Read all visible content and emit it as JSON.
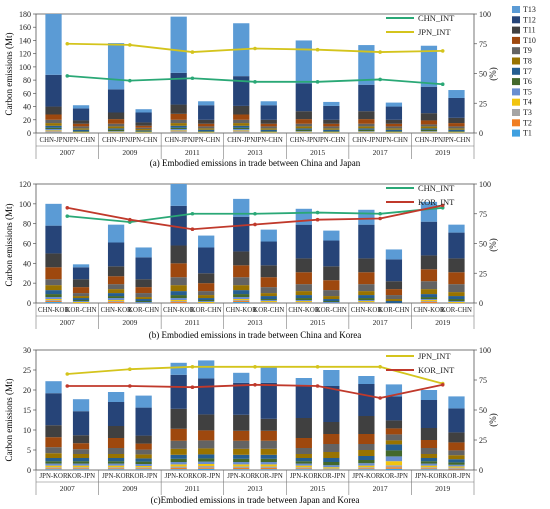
{
  "legend_types": {
    "names": [
      "T13",
      "T12",
      "T11",
      "T10",
      "T9",
      "T8",
      "T7",
      "T6",
      "T5",
      "T4",
      "T3",
      "T2",
      "T1"
    ],
    "colors": [
      "#5b9bd5",
      "#264478",
      "#404040",
      "#9e480e",
      "#636363",
      "#997300",
      "#255e91",
      "#43682b",
      "#698ed0",
      "#f1c40f",
      "#a5a5a5",
      "#f07f24",
      "#3fa0e0"
    ]
  },
  "year_labels": [
    "2007",
    "2009",
    "2011",
    "2013",
    "2015",
    "2017",
    "2019"
  ],
  "chart_data": [
    {
      "type": "bar",
      "stacked": true,
      "caption": "(a) Embodied emissions in trade between China and Japan",
      "ylabel": "Carbon emissions  (Mt)",
      "y2label": "(%)",
      "ylim": [
        0,
        180
      ],
      "yticks": [
        0,
        20,
        40,
        60,
        80,
        100,
        120,
        140,
        160,
        180
      ],
      "y2lim": [
        0,
        100
      ],
      "y2ticks": [
        0,
        25,
        50,
        75,
        100
      ],
      "categories": [
        "CHN-JPN",
        "JPN-CHN",
        "CHN-JPN",
        "JPN-CHN",
        "CHN-JPN",
        "JPN-CHN",
        "CHN-JPN",
        "JPN-CHN",
        "CHN-JPN",
        "JPN-CHN",
        "CHN-JPN",
        "JPN-CHN",
        "CHN-JPN",
        "JPN-CHN"
      ],
      "stacks": [
        [
          92,
          48,
          12,
          8,
          5,
          4,
          3,
          2,
          2,
          1,
          1,
          1,
          1
        ],
        [
          5,
          18,
          5,
          4,
          3,
          2,
          2,
          1,
          1,
          1,
          0,
          0,
          0
        ],
        [
          70,
          35,
          10,
          7,
          4,
          3,
          2,
          2,
          1,
          1,
          1,
          0,
          0
        ],
        [
          5,
          15,
          5,
          3,
          2,
          2,
          1,
          1,
          1,
          1,
          0,
          0,
          0
        ],
        [
          85,
          48,
          14,
          9,
          5,
          4,
          3,
          2,
          2,
          1,
          1,
          1,
          1
        ],
        [
          6,
          22,
          6,
          4,
          3,
          2,
          2,
          1,
          1,
          1,
          0,
          0,
          0
        ],
        [
          80,
          45,
          13,
          8,
          5,
          4,
          3,
          2,
          2,
          1,
          1,
          1,
          1
        ],
        [
          6,
          22,
          6,
          4,
          3,
          2,
          2,
          1,
          1,
          1,
          0,
          0,
          0
        ],
        [
          65,
          42,
          12,
          7,
          4,
          3,
          2,
          2,
          1,
          1,
          1,
          0,
          0
        ],
        [
          6,
          21,
          6,
          4,
          3,
          2,
          2,
          1,
          1,
          1,
          0,
          0,
          0
        ],
        [
          60,
          40,
          12,
          7,
          4,
          3,
          2,
          2,
          1,
          1,
          1,
          0,
          0
        ],
        [
          6,
          20,
          6,
          4,
          3,
          2,
          2,
          1,
          1,
          1,
          0,
          0,
          0
        ],
        [
          62,
          40,
          11,
          6,
          3,
          3,
          2,
          2,
          1,
          1,
          1,
          0,
          0
        ],
        [
          12,
          30,
          8,
          5,
          3,
          2,
          2,
          1,
          1,
          1,
          0,
          0,
          0
        ]
      ],
      "lines": [
        {
          "name": "CHN_INT",
          "color": "#2aa876",
          "values": [
            48,
            44,
            46,
            43,
            43,
            45,
            41
          ]
        },
        {
          "name": "JPN_INT",
          "color": "#d4c41c",
          "values": [
            75,
            74,
            68,
            71,
            70,
            68,
            69
          ]
        }
      ]
    },
    {
      "type": "bar",
      "stacked": true,
      "caption": "(b) Embodied emissions in trade between China and Korea",
      "ylabel": "Carbon emissions  (Mt)",
      "y2label": "(%)",
      "ylim": [
        0,
        120
      ],
      "yticks": [
        0,
        20,
        40,
        60,
        80,
        100,
        120
      ],
      "y2lim": [
        0,
        100
      ],
      "y2ticks": [
        0,
        25,
        50,
        75,
        100
      ],
      "categories": [
        "CHN-KOR",
        "KOR-CHN",
        "CHN-KOR",
        "KOR-CHN",
        "CHN-KOR",
        "KOR-CHN",
        "CHN-KOR",
        "KOR-CHN",
        "CHN-KOR",
        "KOR-CHN",
        "CHN-KOR",
        "KOR-CHN",
        "CHN-KOR",
        "KOR-CHN"
      ],
      "stacks": [
        [
          22,
          28,
          14,
          12,
          6,
          5,
          4,
          3,
          2,
          1,
          1,
          1,
          1
        ],
        [
          3,
          12,
          8,
          6,
          3,
          2,
          2,
          1,
          1,
          1,
          0,
          0,
          0
        ],
        [
          18,
          24,
          10,
          8,
          5,
          4,
          3,
          2,
          2,
          1,
          1,
          1,
          0
        ],
        [
          10,
          22,
          8,
          6,
          4,
          2,
          2,
          1,
          1,
          0,
          0,
          0,
          0
        ],
        [
          22,
          40,
          18,
          14,
          8,
          6,
          4,
          3,
          2,
          1,
          1,
          1,
          0
        ],
        [
          12,
          26,
          10,
          8,
          4,
          3,
          2,
          1,
          1,
          1,
          0,
          0,
          0
        ],
        [
          18,
          35,
          14,
          12,
          8,
          5,
          4,
          3,
          2,
          1,
          1,
          1,
          1
        ],
        [
          12,
          24,
          12,
          10,
          6,
          3,
          3,
          1,
          1,
          1,
          1,
          0,
          0
        ],
        [
          16,
          34,
          14,
          12,
          7,
          4,
          3,
          2,
          1,
          1,
          1,
          0,
          0
        ],
        [
          10,
          26,
          14,
          10,
          6,
          3,
          2,
          1,
          1,
          0,
          0,
          0,
          0
        ],
        [
          15,
          34,
          14,
          12,
          7,
          4,
          3,
          2,
          1,
          1,
          1,
          0,
          0
        ],
        [
          10,
          22,
          8,
          6,
          4,
          2,
          2,
          0,
          0,
          0,
          0,
          0,
          0
        ],
        [
          20,
          34,
          14,
          12,
          8,
          5,
          3,
          2,
          1,
          1,
          1,
          1,
          0
        ],
        [
          8,
          26,
          14,
          12,
          8,
          4,
          3,
          2,
          1,
          1,
          0,
          0,
          0
        ]
      ],
      "lines": [
        {
          "name": "CHN_INT",
          "color": "#2aa876",
          "values": [
            73,
            68,
            75,
            75,
            76,
            75,
            80
          ]
        },
        {
          "name": "KOR_INT",
          "color": "#c0392b",
          "values": [
            80,
            70,
            62,
            66,
            70,
            71,
            82
          ]
        }
      ]
    },
    {
      "type": "bar",
      "stacked": true,
      "caption": "(c)Embodied emissions in trade between Japan and Korea",
      "ylabel": "Carbon emissions  (Mt)",
      "y2label": "(%)",
      "ylim": [
        0,
        30
      ],
      "yticks": [
        0,
        5,
        10,
        15,
        20,
        25,
        30
      ],
      "y2lim": [
        0,
        100
      ],
      "y2ticks": [
        0,
        25,
        50,
        75,
        100
      ],
      "categories": [
        "JPN-KOR",
        "KOR-JPN",
        "JPN-KOR",
        "KOR-JPN",
        "JPN-KOR",
        "KOR-JPN",
        "JPN-KOR",
        "KOR-JPN",
        "JPN-KOR",
        "KOR-JPN",
        "JPN-KOR",
        "KOR-JPN",
        "JPN-KOR",
        "KOR-JPN"
      ],
      "stacks": [
        [
          3,
          8,
          3,
          2.5,
          1.5,
          1.2,
          0.8,
          0.6,
          0.5,
          0.4,
          0.3,
          0.2,
          0.2
        ],
        [
          3,
          6,
          2,
          1.5,
          1.2,
          1,
          0.8,
          0.6,
          0.5,
          0.4,
          0.3,
          0.2,
          0.2
        ],
        [
          2.5,
          6,
          3,
          2.5,
          1.5,
          1,
          0.8,
          0.6,
          0.5,
          0.4,
          0.3,
          0.2,
          0.2
        ],
        [
          3,
          7,
          2,
          1.5,
          1.2,
          1,
          0.8,
          0.6,
          0.5,
          0.3,
          0.3,
          0.2,
          0.2
        ],
        [
          3,
          8.5,
          5,
          3,
          2,
          1.5,
          1,
          0.8,
          0.6,
          0.5,
          0.4,
          0.3,
          0.2
        ],
        [
          4.5,
          9,
          4,
          2.5,
          2,
          1.5,
          1,
          0.8,
          0.6,
          0.5,
          0.4,
          0.3,
          0.3
        ],
        [
          2.5,
          8,
          4,
          2.5,
          2,
          1.5,
          1,
          0.8,
          0.6,
          0.5,
          0.4,
          0.3,
          0.2
        ],
        [
          4,
          9,
          3,
          2.5,
          2,
          1.5,
          1,
          0.8,
          0.6,
          0.5,
          0.4,
          0.3,
          0.2
        ],
        [
          2,
          8,
          5,
          2.5,
          1.5,
          1,
          0.8,
          0.6,
          0.5,
          0.4,
          0.3,
          0.2,
          0.2
        ],
        [
          4,
          9,
          3,
          2.5,
          2,
          1.5,
          1,
          0.8,
          0.5,
          0.3,
          0.2,
          0.1,
          0.1
        ],
        [
          2,
          8,
          4.5,
          2.5,
          1.5,
          1.5,
          1,
          0.8,
          0.6,
          0.4,
          0.3,
          0.2,
          0.2
        ],
        [
          3,
          6,
          2,
          1.5,
          1.5,
          1,
          1.5,
          1.5,
          1.2,
          1,
          0.5,
          0.4,
          0.3
        ],
        [
          2.5,
          7,
          3,
          2,
          1.5,
          1,
          0.8,
          0.6,
          0.5,
          0.4,
          0.3,
          0.2,
          0.2
        ],
        [
          3,
          6,
          2.5,
          2,
          1.2,
          1,
          0.8,
          0.6,
          0.4,
          0.3,
          0.3,
          0.2,
          0.1
        ]
      ],
      "lines": [
        {
          "name": "JPN_INT",
          "color": "#d4c41c",
          "values": [
            80,
            84,
            86,
            86,
            86,
            86,
            72
          ]
        },
        {
          "name": "KOR_INT",
          "color": "#c0392b",
          "values": [
            70,
            70,
            69,
            71,
            70,
            60,
            71
          ]
        }
      ]
    }
  ]
}
